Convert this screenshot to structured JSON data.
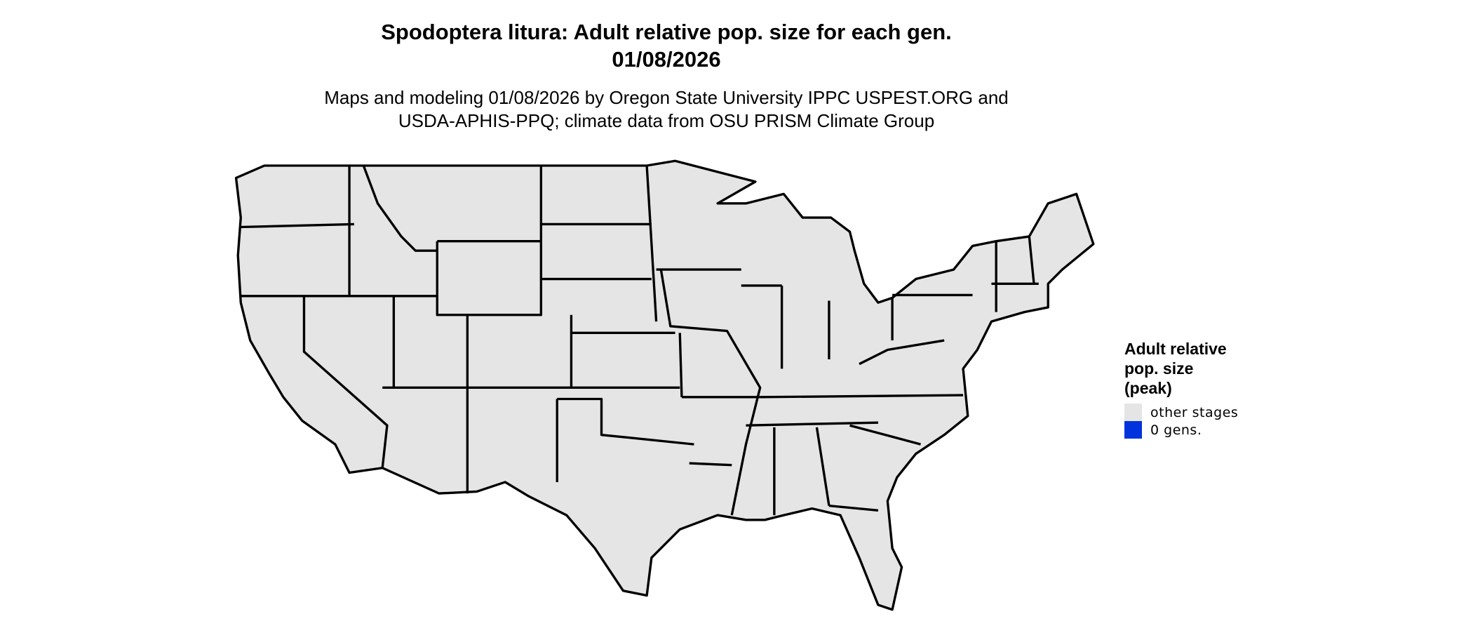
{
  "title": {
    "line1": "Spodoptera litura: Adult relative pop. size for each gen.",
    "line2": "01/08/2026"
  },
  "subtitle": {
    "line1": "Maps and modeling 01/08/2026 by Oregon State University IPPC USPEST.ORG and",
    "line2": "USDA-APHIS-PPQ; climate data from OSU PRISM Climate Group"
  },
  "map": {
    "region": "Contiguous United States",
    "fill_color": "#e5e5e5",
    "border_color": "#000000"
  },
  "legend": {
    "title_lines": [
      "Adult relative",
      "pop. size",
      "(peak)"
    ],
    "items": [
      {
        "label": "other stages",
        "color": "#e5e5e5"
      },
      {
        "label": "0 gens.",
        "color": "#0033dd"
      }
    ]
  }
}
